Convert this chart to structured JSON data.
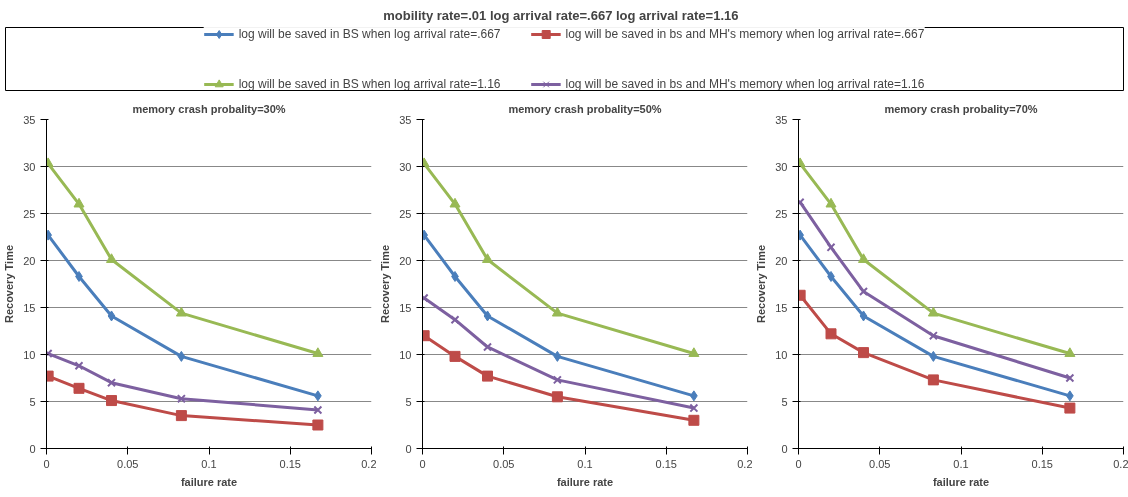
{
  "chart_data": [
    {
      "type": "line",
      "title": "memory crash probality=30%",
      "xlabel": "failure rate",
      "ylabel": "Recovery Time",
      "annotations": [
        "mobility rate=.01  log arrival rate=.667  log arrival rate=1.16"
      ],
      "x": [
        0.001,
        0.02,
        0.04,
        0.083,
        0.167
      ],
      "series": [
        {
          "name": "log will be saved in BS when log arrival rate=.667",
          "color": "#4a7ebb",
          "marker": "diamond",
          "values": [
            22.7,
            18.3,
            14.1,
            9.8,
            5.6
          ]
        },
        {
          "name": "log will be saved in bs and MH's memory when log arrival rate=.667",
          "color": "#be4b48",
          "marker": "square",
          "values": [
            7.7,
            6.4,
            5.1,
            3.5,
            2.5
          ]
        },
        {
          "name": "log will be saved in BS when log arrival rate=1.16",
          "color": "#98b954",
          "marker": "triangle",
          "values": [
            30.3,
            26,
            20.1,
            14.4,
            10.1
          ]
        },
        {
          "name": "log will be saved in bs and MH's memory when log arrival rate=1.16",
          "color": "#7d60a0",
          "marker": "cross",
          "values": [
            10.1,
            8.8,
            7,
            5.3,
            4.1
          ]
        }
      ],
      "xlim": [
        0,
        0.2
      ],
      "xticks": [
        0,
        0.05,
        0.1,
        0.15,
        0.2
      ],
      "ylim": [
        0,
        35
      ],
      "yticks": [
        0,
        5,
        10,
        15,
        20,
        25,
        30,
        35
      ],
      "grid": "y",
      "legend": "top",
      "line_style": "solid"
    },
    {
      "type": "line",
      "title": "memory crash probality=50%",
      "xlabel": "failure rate",
      "ylabel": "Recovery Time",
      "x": [
        0.001,
        0.02,
        0.04,
        0.083,
        0.167
      ],
      "series": [
        {
          "color": "#4a7ebb",
          "marker": "diamond",
          "values": [
            22.7,
            18.3,
            14.1,
            9.8,
            5.6
          ]
        },
        {
          "color": "#be4b48",
          "marker": "square",
          "values": [
            12,
            9.8,
            7.7,
            5.5,
            3
          ]
        },
        {
          "color": "#98b954",
          "marker": "triangle",
          "values": [
            30.3,
            26,
            20.1,
            14.4,
            10.1
          ]
        },
        {
          "color": "#7d60a0",
          "marker": "cross",
          "values": [
            16,
            13.7,
            10.8,
            7.3,
            4.3
          ]
        }
      ],
      "xlim": [
        0,
        0.2
      ],
      "xticks": [
        0,
        0.05,
        0.1,
        0.15,
        0.2
      ],
      "ylim": [
        0,
        35
      ],
      "yticks": [
        0,
        5,
        10,
        15,
        20,
        25,
        30,
        35
      ],
      "grid": "y",
      "line_style": "solid"
    },
    {
      "type": "line",
      "title": "memory crash probality=70%",
      "xlabel": "failure rate",
      "ylabel": "Recovery Time",
      "x": [
        0.001,
        0.02,
        0.04,
        0.083,
        0.167
      ],
      "series": [
        {
          "color": "#4a7ebb",
          "marker": "diamond",
          "values": [
            22.7,
            18.3,
            14.1,
            9.8,
            5.6
          ]
        },
        {
          "color": "#be4b48",
          "marker": "square",
          "values": [
            16.3,
            12.2,
            10.2,
            7.3,
            4.3
          ]
        },
        {
          "color": "#98b954",
          "marker": "triangle",
          "values": [
            30.3,
            26,
            20.1,
            14.4,
            10.1
          ]
        },
        {
          "color": "#7d60a0",
          "marker": "cross",
          "values": [
            26.2,
            21.4,
            16.7,
            12,
            7.5
          ]
        }
      ],
      "xlim": [
        0,
        0.2
      ],
      "xticks": [
        0,
        0.05,
        0.1,
        0.15,
        0.2
      ],
      "ylim": [
        0,
        35
      ],
      "yticks": [
        0,
        5,
        10,
        15,
        20,
        25,
        30,
        35
      ],
      "grid": "y",
      "line_style": "solid"
    }
  ]
}
